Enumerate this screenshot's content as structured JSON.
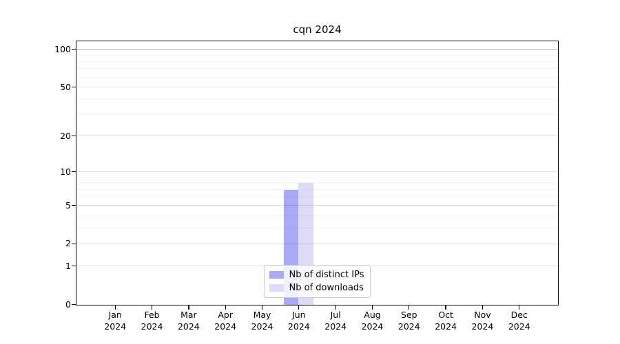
{
  "chart_data": {
    "type": "bar",
    "title": "cqn 2024",
    "categories": [
      "Jan",
      "Feb",
      "Mar",
      "Apr",
      "May",
      "Jun",
      "Jul",
      "Aug",
      "Sep",
      "Oct",
      "Nov",
      "Dec"
    ],
    "category_year": "2024",
    "series": [
      {
        "name": "Nb of distinct IPs",
        "color": "#a9a9f7",
        "values": [
          0,
          0,
          0,
          0,
          0,
          7,
          0,
          0,
          0,
          0,
          0,
          0
        ]
      },
      {
        "name": "Nb of downloads",
        "color": "#dcdcf8",
        "values": [
          0,
          0,
          0,
          0,
          0,
          8,
          0,
          0,
          0,
          0,
          0,
          0
        ]
      }
    ],
    "y_axis": {
      "scale": "log1p",
      "major_ticks": [
        0,
        1,
        2,
        5,
        10,
        20,
        50,
        100
      ],
      "minor_ticks": [
        3,
        4,
        6,
        7,
        8,
        9,
        30,
        40,
        60,
        70,
        80,
        90
      ],
      "ymax": 115
    },
    "xlabel": "",
    "ylabel": "",
    "grid": true,
    "legend_position": "lower center"
  },
  "colors": {
    "background": "#ffffff",
    "spine": "#000000",
    "grid_major": "rgba(0,0,0,0.12)",
    "grid_top_emphasis": "rgba(0,0,0,0.30)",
    "grid_minor": "rgba(0,0,0,0.045)"
  }
}
